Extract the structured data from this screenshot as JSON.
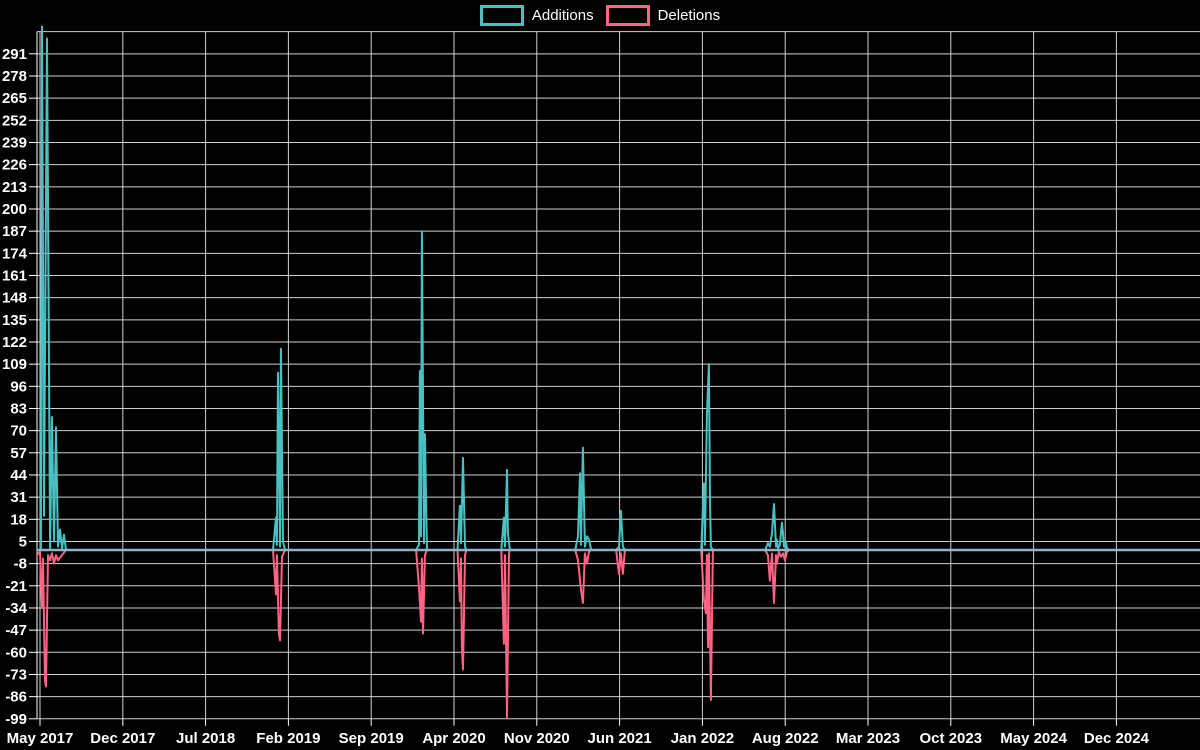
{
  "legend": {
    "items": [
      {
        "name": "Additions",
        "color": "#4bc0c0"
      },
      {
        "name": "Deletions",
        "color": "#ff6384"
      }
    ]
  },
  "chart_data": {
    "type": "line",
    "title": "",
    "xlabel": "",
    "ylabel": "",
    "grid": true,
    "legend_position": "top-center",
    "background_color": "#000000",
    "grid_color": "#d0d0d0",
    "text_color": "#ffffff",
    "zero_line_color": "#8db3c7",
    "y_axis": {
      "min": -99,
      "max": 304,
      "step": 13,
      "tick_labels": [
        291,
        278,
        265,
        252,
        239,
        226,
        213,
        200,
        187,
        174,
        161,
        148,
        135,
        122,
        109,
        96,
        83,
        70,
        57,
        44,
        31,
        18,
        5,
        -8,
        -21,
        -34,
        -47,
        -60,
        -73,
        -86,
        -99
      ]
    },
    "x_axis": {
      "unit": "months since May 2017",
      "months_per_gridline": 7,
      "tick_labels": [
        "May 2017",
        "Dec 2017",
        "Jul 2018",
        "Feb 2019",
        "Sep 2019",
        "Apr 2020",
        "Nov 2020",
        "Jun 2021",
        "Jan 2022",
        "Aug 2022",
        "Mar 2023",
        "Oct 2023",
        "May 2024",
        "Dec 2024"
      ]
    },
    "series": [
      {
        "name": "Additions",
        "color": "#4bc0c0",
        "points": [
          [
            -0.25,
            0
          ],
          [
            0.08,
            0
          ],
          [
            0.17,
            307
          ],
          [
            0.34,
            20
          ],
          [
            0.59,
            300
          ],
          [
            0.85,
            0
          ],
          [
            1.01,
            78
          ],
          [
            1.18,
            5
          ],
          [
            1.35,
            72
          ],
          [
            1.52,
            2
          ],
          [
            1.69,
            12
          ],
          [
            1.86,
            1
          ],
          [
            2.03,
            9
          ],
          [
            2.2,
            0
          ],
          [
            19.7,
            0
          ],
          [
            19.95,
            19
          ],
          [
            20.03,
            3
          ],
          [
            20.12,
            104
          ],
          [
            20.2,
            61
          ],
          [
            20.29,
            2
          ],
          [
            20.37,
            118
          ],
          [
            20.54,
            5
          ],
          [
            20.71,
            0
          ],
          [
            31.8,
            0
          ],
          [
            32.04,
            3
          ],
          [
            32.12,
            105
          ],
          [
            32.21,
            8
          ],
          [
            32.29,
            187
          ],
          [
            32.46,
            4
          ],
          [
            32.54,
            68
          ],
          [
            32.72,
            0
          ],
          [
            35.3,
            0
          ],
          [
            35.5,
            26
          ],
          [
            35.59,
            4
          ],
          [
            35.76,
            54
          ],
          [
            35.93,
            2
          ],
          [
            36.05,
            0
          ],
          [
            39.0,
            0
          ],
          [
            39.22,
            19
          ],
          [
            39.31,
            2
          ],
          [
            39.48,
            47
          ],
          [
            39.56,
            10
          ],
          [
            39.73,
            0
          ],
          [
            45.25,
            0
          ],
          [
            45.48,
            8
          ],
          [
            45.65,
            45
          ],
          [
            45.73,
            3
          ],
          [
            45.9,
            60
          ],
          [
            46.07,
            2
          ],
          [
            46.24,
            8
          ],
          [
            46.41,
            6
          ],
          [
            46.6,
            0
          ],
          [
            48.7,
            0
          ],
          [
            48.95,
            2
          ],
          [
            49.11,
            23
          ],
          [
            49.28,
            2
          ],
          [
            49.45,
            0
          ],
          [
            55.9,
            0
          ],
          [
            56.13,
            39
          ],
          [
            56.21,
            3
          ],
          [
            56.38,
            79
          ],
          [
            56.55,
            109
          ],
          [
            56.64,
            28
          ],
          [
            56.72,
            2
          ],
          [
            56.89,
            0
          ],
          [
            61.3,
            0
          ],
          [
            61.54,
            4
          ],
          [
            61.71,
            2
          ],
          [
            61.88,
            10
          ],
          [
            62.05,
            27
          ],
          [
            62.22,
            2
          ],
          [
            62.3,
            6
          ],
          [
            62.39,
            1
          ],
          [
            62.55,
            3
          ],
          [
            62.72,
            16
          ],
          [
            62.81,
            10
          ],
          [
            62.89,
            2
          ],
          [
            63.06,
            5
          ],
          [
            63.15,
            1
          ],
          [
            63.32,
            0
          ]
        ]
      },
      {
        "name": "Deletions",
        "color": "#ff6384",
        "points": [
          [
            -0.25,
            -3
          ],
          [
            0.0,
            -1
          ],
          [
            0.17,
            -34
          ],
          [
            0.25,
            -5
          ],
          [
            0.42,
            -77
          ],
          [
            0.51,
            -80
          ],
          [
            0.68,
            -3
          ],
          [
            0.85,
            -6
          ],
          [
            1.01,
            -2
          ],
          [
            1.18,
            -8
          ],
          [
            1.35,
            -3
          ],
          [
            1.52,
            -6
          ],
          [
            1.86,
            -3
          ],
          [
            2.2,
            0
          ],
          [
            19.7,
            0
          ],
          [
            19.95,
            -26
          ],
          [
            20.03,
            -3
          ],
          [
            20.2,
            -49
          ],
          [
            20.29,
            -53
          ],
          [
            20.46,
            -4
          ],
          [
            20.71,
            0
          ],
          [
            31.8,
            0
          ],
          [
            32.04,
            -22
          ],
          [
            32.21,
            -42
          ],
          [
            32.29,
            -5
          ],
          [
            32.38,
            -49
          ],
          [
            32.54,
            -3
          ],
          [
            32.72,
            0
          ],
          [
            35.3,
            0
          ],
          [
            35.5,
            -30
          ],
          [
            35.59,
            -5
          ],
          [
            35.67,
            -57
          ],
          [
            35.76,
            -70
          ],
          [
            35.93,
            -3
          ],
          [
            36.05,
            0
          ],
          [
            39.0,
            0
          ],
          [
            39.22,
            -55
          ],
          [
            39.31,
            -3
          ],
          [
            39.48,
            -98
          ],
          [
            39.65,
            -2
          ],
          [
            39.73,
            0
          ],
          [
            45.25,
            0
          ],
          [
            45.48,
            -6
          ],
          [
            45.73,
            -23
          ],
          [
            45.9,
            -31
          ],
          [
            46.07,
            -2
          ],
          [
            46.24,
            -8
          ],
          [
            46.41,
            -1
          ],
          [
            46.6,
            0
          ],
          [
            48.7,
            0
          ],
          [
            48.95,
            -14
          ],
          [
            49.11,
            -2
          ],
          [
            49.28,
            -14
          ],
          [
            49.45,
            0
          ],
          [
            55.9,
            0
          ],
          [
            56.13,
            -29
          ],
          [
            56.3,
            -37
          ],
          [
            56.38,
            -3
          ],
          [
            56.47,
            -57
          ],
          [
            56.55,
            -2
          ],
          [
            56.72,
            -88
          ],
          [
            56.89,
            0
          ],
          [
            61.3,
            0
          ],
          [
            61.54,
            -3
          ],
          [
            61.71,
            -18
          ],
          [
            61.88,
            -2
          ],
          [
            62.05,
            -31
          ],
          [
            62.22,
            -3
          ],
          [
            62.3,
            -8
          ],
          [
            62.47,
            -1
          ],
          [
            62.64,
            -4
          ],
          [
            62.81,
            -2
          ],
          [
            62.98,
            -6
          ],
          [
            63.15,
            -1
          ],
          [
            63.32,
            0
          ]
        ]
      }
    ],
    "baseline": {
      "value": 0,
      "full_width": true
    }
  }
}
